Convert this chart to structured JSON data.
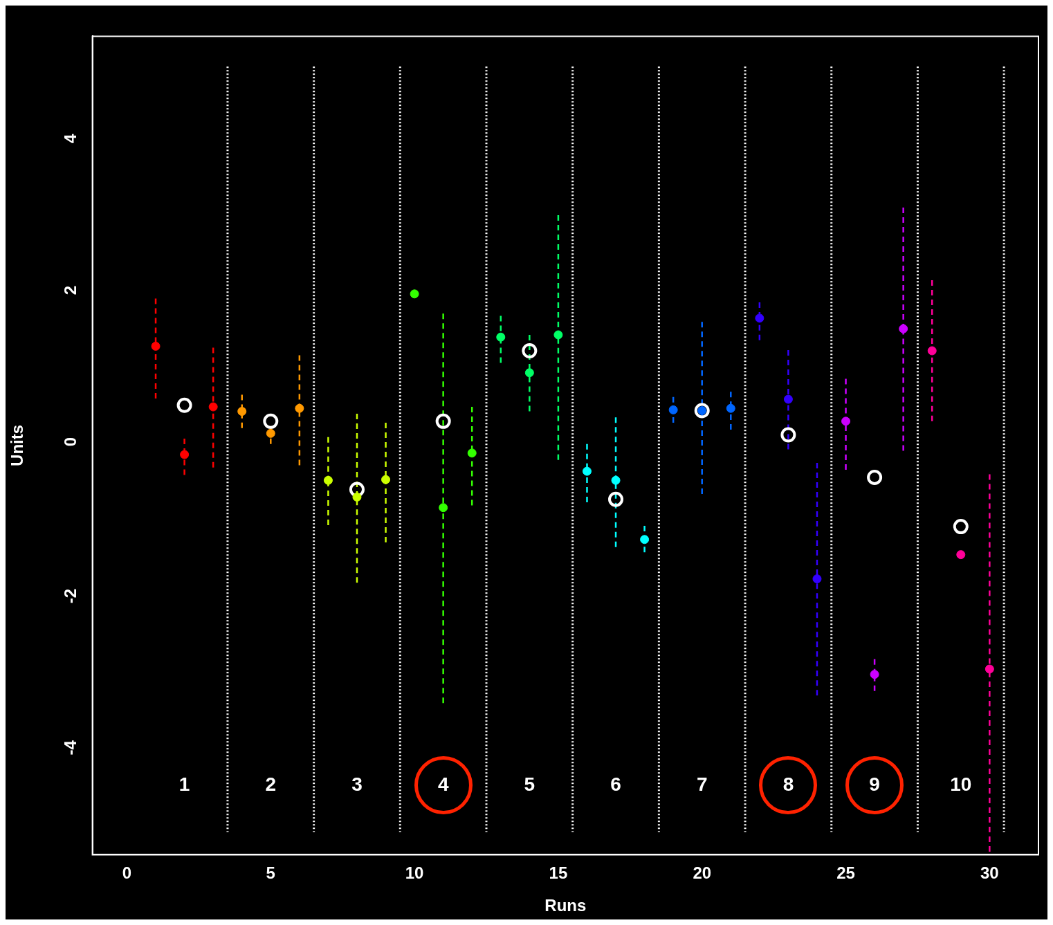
{
  "chart_data": {
    "type": "scatter",
    "xlabel": "Runs",
    "ylabel": "Units",
    "xlim": [
      -1.2,
      31.7
    ],
    "ylim": [
      -5.4,
      5.4
    ],
    "xticks": [
      0,
      5,
      10,
      15,
      20,
      25,
      30
    ],
    "yticks": [
      -4,
      -2,
      0,
      2,
      4
    ],
    "grid": false,
    "legend": false,
    "marker": "circle",
    "line_style": "dashed",
    "series": [
      {
        "color": "#ff0000",
        "x": [
          1,
          2,
          3
        ],
        "values": [
          1.31,
          -0.12,
          0.51
        ],
        "errors": [
          [
            0.62,
            1.94
          ],
          [
            -0.39,
            0.09
          ],
          [
            -0.29,
            1.29
          ]
        ]
      },
      {
        "color": "#ff9900",
        "x": [
          4,
          5,
          6
        ],
        "values": [
          0.45,
          0.16,
          0.49
        ],
        "errors": [
          [
            0.23,
            0.67
          ],
          [
            0.02,
            0.25
          ],
          [
            -0.26,
            1.19
          ]
        ]
      },
      {
        "color": "#ccff00",
        "x": [
          7,
          8,
          9
        ],
        "values": [
          -0.46,
          -0.68,
          -0.45
        ],
        "errors": [
          [
            -1.05,
            0.11
          ],
          [
            -1.81,
            0.42
          ],
          [
            -1.28,
            0.3
          ]
        ]
      },
      {
        "color": "#33ff00",
        "x": [
          10,
          11,
          12
        ],
        "values": [
          2.0,
          -0.82,
          -0.1
        ],
        "errors": [
          null,
          [
            -3.4,
            1.74
          ],
          [
            -0.79,
            0.51
          ]
        ]
      },
      {
        "color": "#00ff66",
        "x": [
          13,
          14,
          15
        ],
        "values": [
          1.43,
          0.96,
          1.46
        ],
        "errors": [
          [
            1.09,
            1.71
          ],
          [
            0.45,
            1.46
          ],
          [
            -0.19,
            3.04
          ]
        ]
      },
      {
        "color": "#00ffff",
        "x": [
          16,
          17,
          18
        ],
        "values": [
          -0.34,
          -0.46,
          -1.24
        ],
        "errors": [
          [
            -0.75,
            0.02
          ],
          [
            -1.34,
            0.37
          ],
          [
            -1.41,
            -1.06
          ]
        ]
      },
      {
        "color": "#0066ff",
        "x": [
          19,
          20,
          21
        ],
        "values": [
          0.47,
          0.46,
          0.49
        ],
        "errors": [
          [
            0.3,
            0.64
          ],
          [
            -0.64,
            1.63
          ],
          [
            0.21,
            0.71
          ]
        ]
      },
      {
        "color": "#3300ff",
        "x": [
          22,
          23,
          24
        ],
        "values": [
          1.68,
          0.61,
          -1.76
        ],
        "errors": [
          [
            1.39,
            1.89
          ],
          [
            -0.05,
            1.26
          ],
          [
            -3.3,
            -0.23
          ]
        ]
      },
      {
        "color": "#cc00ff",
        "x": [
          25,
          26,
          27
        ],
        "values": [
          0.32,
          -3.02,
          1.54
        ],
        "errors": [
          [
            -0.32,
            0.88
          ],
          [
            -3.24,
            -2.82
          ],
          [
            -0.07,
            3.14
          ]
        ]
      },
      {
        "color": "#ff0099",
        "x": [
          28,
          29,
          30
        ],
        "values": [
          1.25,
          -1.44,
          -2.95
        ],
        "errors": [
          [
            0.32,
            2.18
          ],
          null,
          [
            -5.36,
            -0.38
          ]
        ]
      },
      {
        "color": "#ffffff",
        "x": [
          2,
          5,
          8,
          11,
          14,
          17,
          20,
          23,
          26,
          29
        ],
        "values": [
          0.53,
          0.32,
          -0.58,
          0.32,
          1.25,
          -0.71,
          0.46,
          0.14,
          -0.42,
          -1.07
        ]
      }
    ],
    "ref_lines": [
      {
        "axis": "x",
        "value": 3.5,
        "color": "#ffffff",
        "line_style": "dotted"
      },
      {
        "axis": "x",
        "value": 6.5,
        "color": "#ffffff",
        "line_style": "dotted"
      },
      {
        "axis": "x",
        "value": 9.5,
        "color": "#ffffff",
        "line_style": "dotted"
      },
      {
        "axis": "x",
        "value": 12.5,
        "color": "#ffffff",
        "line_style": "dotted"
      },
      {
        "axis": "x",
        "value": 15.5,
        "color": "#ffffff",
        "line_style": "dotted"
      },
      {
        "axis": "x",
        "value": 18.5,
        "color": "#ffffff",
        "line_style": "dotted"
      },
      {
        "axis": "x",
        "value": 21.5,
        "color": "#ffffff",
        "line_style": "dotted"
      },
      {
        "axis": "x",
        "value": 24.5,
        "color": "#ffffff",
        "line_style": "dotted"
      },
      {
        "axis": "x",
        "value": 27.5,
        "color": "#ffffff",
        "line_style": "dotted"
      },
      {
        "axis": "x",
        "value": 30.5,
        "color": "#ffffff",
        "line_style": "dotted"
      }
    ],
    "annotations": [
      "1",
      "2",
      "3",
      "4",
      "5",
      "6",
      "7",
      "8",
      "9",
      "10"
    ]
  }
}
